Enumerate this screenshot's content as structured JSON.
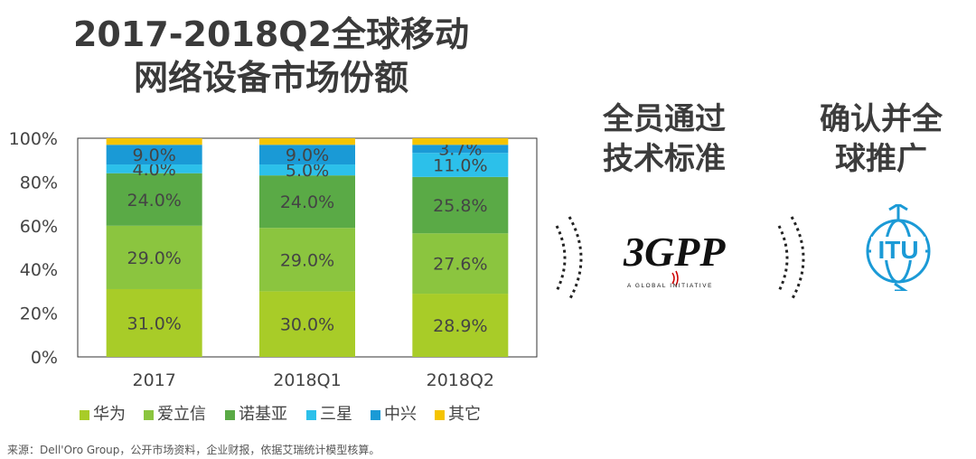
{
  "chart_data": {
    "type": "bar",
    "stacked": true,
    "title": "2017-2018Q2全球移动\n网络设备市场份额",
    "categories": [
      "2017",
      "2018Q1",
      "2018Q2"
    ],
    "yticks": [
      "0%",
      "20%",
      "40%",
      "60%",
      "80%",
      "100%"
    ],
    "ylim": [
      0,
      100
    ],
    "legend_position": "bottom",
    "series": [
      {
        "name": "华为",
        "color": "#a8cc28",
        "values": [
          31.0,
          30.0,
          28.9
        ],
        "labels": [
          "31.0%",
          "30.0%",
          "28.9%"
        ]
      },
      {
        "name": "爱立信",
        "color": "#8bc53f",
        "values": [
          29.0,
          29.0,
          27.6
        ],
        "labels": [
          "29.0%",
          "29.0%",
          "27.6%"
        ]
      },
      {
        "name": "诺基亚",
        "color": "#5aaa46",
        "values": [
          24.0,
          24.0,
          25.8
        ],
        "labels": [
          "24.0%",
          "24.0%",
          "25.8%"
        ]
      },
      {
        "name": "三星",
        "color": "#2cc0ea",
        "values": [
          4.0,
          5.0,
          11.0
        ],
        "labels": [
          "4.0%",
          "5.0%",
          "11.0%"
        ]
      },
      {
        "name": "中兴",
        "color": "#1a9ad6",
        "values": [
          9.0,
          9.0,
          3.7
        ],
        "labels": [
          "9.0%",
          "9.0%",
          "3.7%"
        ]
      },
      {
        "name": "其它",
        "color": "#f5c400",
        "values": [
          3.0,
          3.0,
          3.0
        ],
        "labels": [
          "",
          "",
          ""
        ]
      }
    ]
  },
  "right_panel": {
    "heading_left": "全员通过\n技术标准",
    "heading_right": "确认并全\n球推广",
    "logo_3gpp_text": "3GPP",
    "logo_3gpp_tagline": "A GLOBAL INITIATIVE",
    "logo_itu_text": "ITU",
    "colors": {
      "itu_blue": "#1b9ad6",
      "heading": "#3c3c3c"
    }
  },
  "source": "来源：Dell'Oro Group，公开市场资料，企业财报，依据艾瑞统计模型核算。"
}
